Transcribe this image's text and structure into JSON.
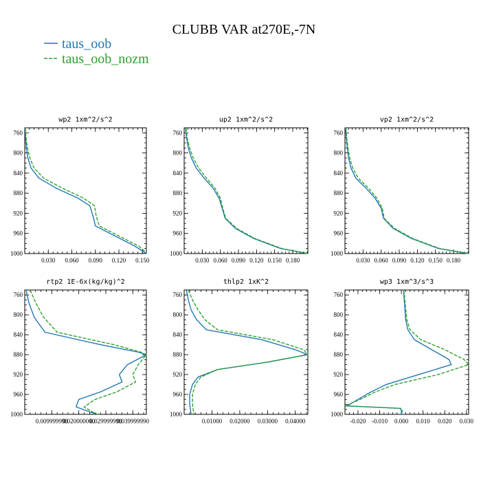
{
  "figure": {
    "title": "CLUBB VAR at270E,-7N",
    "legend": [
      {
        "label": "taus_oob",
        "color": "#1f77b4",
        "dash": "solid"
      },
      {
        "label": "taus_oob_nozm",
        "color": "#2ca02c",
        "dash": "dashed"
      }
    ]
  },
  "chart_data": [
    {
      "type": "line",
      "title": "wp2  1xm^2/s^2",
      "xlim": [
        0,
        0.155
      ],
      "ylim": [
        1000,
        750
      ],
      "xticks": [
        0.03,
        0.06,
        0.09,
        0.12,
        0.15
      ],
      "xticklabels": [
        "0.030",
        "0.060",
        "0.090",
        "0.120",
        "0.150"
      ],
      "yticks": [
        760,
        800,
        840,
        880,
        920,
        960,
        1000
      ],
      "yticklabels": [
        "760",
        "800",
        "840",
        "880",
        "920",
        "960",
        "1000"
      ],
      "series": [
        {
          "name": "taus_oob",
          "points": [
            [
              0.0005,
              750
            ],
            [
              0.001,
              770
            ],
            [
              0.002,
              790
            ],
            [
              0.004,
              810
            ],
            [
              0.008,
              830
            ],
            [
              0.018,
              850
            ],
            [
              0.04,
              870
            ],
            [
              0.068,
              890
            ],
            [
              0.083,
              905
            ],
            [
              0.087,
              925
            ],
            [
              0.09,
              945
            ],
            [
              0.115,
              965
            ],
            [
              0.14,
              985
            ],
            [
              0.155,
              1000
            ]
          ]
        },
        {
          "name": "taus_oob_nozm",
          "points": [
            [
              0.0008,
              750
            ],
            [
              0.0015,
              770
            ],
            [
              0.0035,
              790
            ],
            [
              0.0065,
              810
            ],
            [
              0.012,
              830
            ],
            [
              0.024,
              850
            ],
            [
              0.048,
              870
            ],
            [
              0.075,
              890
            ],
            [
              0.089,
              905
            ],
            [
              0.091,
              925
            ],
            [
              0.095,
              945
            ],
            [
              0.12,
              965
            ],
            [
              0.145,
              985
            ],
            [
              0.155,
              998
            ]
          ]
        }
      ]
    },
    {
      "type": "line",
      "title": "up2  1xm^2/s^2",
      "xlim": [
        0,
        0.205
      ],
      "ylim": [
        1000,
        750
      ],
      "xticks": [
        0.03,
        0.06,
        0.09,
        0.12,
        0.15,
        0.18
      ],
      "xticklabels": [
        "0.030",
        "0.060",
        "0.090",
        "0.120",
        "0.150",
        "0.180"
      ],
      "yticks": [
        760,
        800,
        840,
        880,
        920,
        960,
        1000
      ],
      "yticklabels": [
        "760",
        "800",
        "840",
        "880",
        "920",
        "960",
        "1000"
      ],
      "series": [
        {
          "name": "taus_oob",
          "points": [
            [
              0.002,
              750
            ],
            [
              0.004,
              770
            ],
            [
              0.007,
              790
            ],
            [
              0.012,
              810
            ],
            [
              0.02,
              830
            ],
            [
              0.033,
              850
            ],
            [
              0.048,
              870
            ],
            [
              0.058,
              890
            ],
            [
              0.063,
              910
            ],
            [
              0.068,
              930
            ],
            [
              0.085,
              950
            ],
            [
              0.115,
              970
            ],
            [
              0.16,
              990
            ],
            [
              0.205,
              1000
            ]
          ]
        },
        {
          "name": "taus_oob_nozm",
          "points": [
            [
              0.003,
              750
            ],
            [
              0.005,
              770
            ],
            [
              0.009,
              790
            ],
            [
              0.015,
              810
            ],
            [
              0.024,
              830
            ],
            [
              0.037,
              850
            ],
            [
              0.051,
              870
            ],
            [
              0.06,
              890
            ],
            [
              0.064,
              910
            ],
            [
              0.069,
              930
            ],
            [
              0.087,
              950
            ],
            [
              0.117,
              970
            ],
            [
              0.162,
              990
            ],
            [
              0.205,
              1000
            ]
          ]
        }
      ]
    },
    {
      "type": "line",
      "title": "vp2  1xm^2/s^2",
      "xlim": [
        0,
        0.205
      ],
      "ylim": [
        1000,
        750
      ],
      "xticks": [
        0.03,
        0.06,
        0.09,
        0.12,
        0.15,
        0.18
      ],
      "xticklabels": [
        "0.030",
        "0.060",
        "0.090",
        "0.120",
        "0.150",
        "0.180"
      ],
      "yticks": [
        760,
        800,
        840,
        880,
        920,
        960,
        1000
      ],
      "yticklabels": [
        "760",
        "800",
        "840",
        "880",
        "920",
        "960",
        "1000"
      ],
      "series": [
        {
          "name": "taus_oob",
          "points": [
            [
              0.001,
              750
            ],
            [
              0.002,
              770
            ],
            [
              0.004,
              790
            ],
            [
              0.006,
              810
            ],
            [
              0.01,
              830
            ],
            [
              0.018,
              850
            ],
            [
              0.035,
              870
            ],
            [
              0.05,
              890
            ],
            [
              0.06,
              910
            ],
            [
              0.064,
              930
            ],
            [
              0.08,
              950
            ],
            [
              0.11,
              970
            ],
            [
              0.155,
              990
            ],
            [
              0.205,
              1000
            ]
          ]
        },
        {
          "name": "taus_oob_nozm",
          "points": [
            [
              0.0015,
              750
            ],
            [
              0.003,
              770
            ],
            [
              0.005,
              790
            ],
            [
              0.008,
              810
            ],
            [
              0.013,
              830
            ],
            [
              0.022,
              850
            ],
            [
              0.039,
              870
            ],
            [
              0.053,
              890
            ],
            [
              0.062,
              910
            ],
            [
              0.065,
              930
            ],
            [
              0.082,
              950
            ],
            [
              0.112,
              970
            ],
            [
              0.157,
              990
            ],
            [
              0.205,
              1000
            ]
          ]
        }
      ]
    },
    {
      "type": "line",
      "title": "rtp2  1E-6x(kg/kg)^2",
      "xlim": [
        0,
        0.045
      ],
      "ylim": [
        1000,
        750
      ],
      "xticks": [
        0.01,
        0.02,
        0.03,
        0.04
      ],
      "xticklabels": [
        "0.009999998",
        "0.020000000",
        "0.029999998",
        "0.039999990"
      ],
      "yticks": [
        760,
        800,
        840,
        880,
        920,
        960,
        1000
      ],
      "yticklabels": [
        "760",
        "800",
        "840",
        "880",
        "920",
        "960",
        "1000"
      ],
      "series": [
        {
          "name": "taus_oob",
          "points": [
            [
              0.0005,
              750
            ],
            [
              0.0015,
              775
            ],
            [
              0.0035,
              805
            ],
            [
              0.0075,
              835
            ],
            [
              0.028,
              860
            ],
            [
              0.042,
              875
            ],
            [
              0.045,
              880
            ],
            [
              0.038,
              900
            ],
            [
              0.035,
              920
            ],
            [
              0.036,
              935
            ],
            [
              0.028,
              955
            ],
            [
              0.02,
              970
            ],
            [
              0.019,
              985
            ],
            [
              0.024,
              995
            ],
            [
              0.027,
              1000
            ]
          ]
        },
        {
          "name": "taus_oob_nozm",
          "points": [
            [
              0.002,
              750
            ],
            [
              0.004,
              775
            ],
            [
              0.007,
              805
            ],
            [
              0.012,
              835
            ],
            [
              0.033,
              860
            ],
            [
              0.043,
              875
            ],
            [
              0.045,
              880
            ],
            [
              0.042,
              900
            ],
            [
              0.04,
              920
            ],
            [
              0.041,
              935
            ],
            [
              0.034,
              955
            ],
            [
              0.026,
              970
            ],
            [
              0.022,
              985
            ],
            [
              0.025,
              995
            ],
            [
              0.027,
              1000
            ]
          ]
        }
      ]
    },
    {
      "type": "line",
      "title": "thlp2  1xK^2",
      "xlim": [
        0,
        0.0445
      ],
      "ylim": [
        1000,
        750
      ],
      "xticks": [
        0.01,
        0.02,
        0.03,
        0.04
      ],
      "xticklabels": [
        "0.01000",
        "0.02000",
        "0.03000",
        "0.04000"
      ],
      "yticks": [
        760,
        800,
        840,
        880,
        920,
        960,
        1000
      ],
      "yticklabels": [
        "760",
        "800",
        "840",
        "880",
        "920",
        "960",
        "1000"
      ],
      "series": [
        {
          "name": "taus_oob",
          "points": [
            [
              0.0008,
              750
            ],
            [
              0.0015,
              770
            ],
            [
              0.0025,
              790
            ],
            [
              0.0045,
              810
            ],
            [
              0.008,
              830
            ],
            [
              0.028,
              850
            ],
            [
              0.04,
              870
            ],
            [
              0.0445,
              880
            ],
            [
              0.03,
              895
            ],
            [
              0.012,
              910
            ],
            [
              0.005,
              925
            ],
            [
              0.003,
              940
            ],
            [
              0.002,
              960
            ],
            [
              0.002,
              980
            ],
            [
              0.0025,
              1000
            ]
          ]
        },
        {
          "name": "taus_oob_nozm",
          "points": [
            [
              0.0015,
              750
            ],
            [
              0.003,
              770
            ],
            [
              0.005,
              790
            ],
            [
              0.0075,
              810
            ],
            [
              0.012,
              830
            ],
            [
              0.032,
              850
            ],
            [
              0.043,
              870
            ],
            [
              0.0445,
              880
            ],
            [
              0.03,
              895
            ],
            [
              0.012,
              910
            ],
            [
              0.006,
              925
            ],
            [
              0.004,
              940
            ],
            [
              0.003,
              960
            ],
            [
              0.003,
              980
            ],
            [
              0.0035,
              1000
            ]
          ]
        }
      ]
    },
    {
      "type": "line",
      "title": "wp3  1xm^3/s^3",
      "xlim": [
        -0.026,
        0.031
      ],
      "ylim": [
        1000,
        750
      ],
      "xticks": [
        -0.02,
        -0.01,
        0.0,
        0.01,
        0.02,
        0.03
      ],
      "xticklabels": [
        "-0.020",
        "-0.010",
        "0.000",
        "0.010",
        "0.020",
        "0.030"
      ],
      "yticks": [
        760,
        800,
        840,
        880,
        920,
        960,
        1000
      ],
      "yticklabels": [
        "760",
        "800",
        "840",
        "880",
        "920",
        "960",
        "1000"
      ],
      "series": [
        {
          "name": "taus_oob",
          "points": [
            [
              0.001,
              750
            ],
            [
              0.0015,
              780
            ],
            [
              0.002,
              810
            ],
            [
              0.003,
              830
            ],
            [
              0.006,
              850
            ],
            [
              0.014,
              870
            ],
            [
              0.022,
              890
            ],
            [
              0.023,
              900
            ],
            [
              0.008,
              920
            ],
            [
              -0.007,
              940
            ],
            [
              -0.014,
              955
            ],
            [
              -0.02,
              970
            ],
            [
              -0.025,
              983
            ],
            [
              -0.0005,
              988
            ],
            [
              0.0,
              992
            ],
            [
              0.0,
              1000
            ]
          ]
        },
        {
          "name": "taus_oob_nozm",
          "points": [
            [
              0.0012,
              750
            ],
            [
              0.0018,
              780
            ],
            [
              0.0025,
              810
            ],
            [
              0.004,
              830
            ],
            [
              0.009,
              850
            ],
            [
              0.02,
              870
            ],
            [
              0.029,
              890
            ],
            [
              0.031,
              900
            ],
            [
              0.017,
              920
            ],
            [
              -0.003,
              940
            ],
            [
              -0.012,
              955
            ],
            [
              -0.019,
              970
            ],
            [
              -0.026,
              983
            ],
            [
              0.0,
              988
            ],
            [
              0.0003,
              992
            ],
            [
              0.0003,
              1000
            ]
          ]
        }
      ]
    }
  ]
}
